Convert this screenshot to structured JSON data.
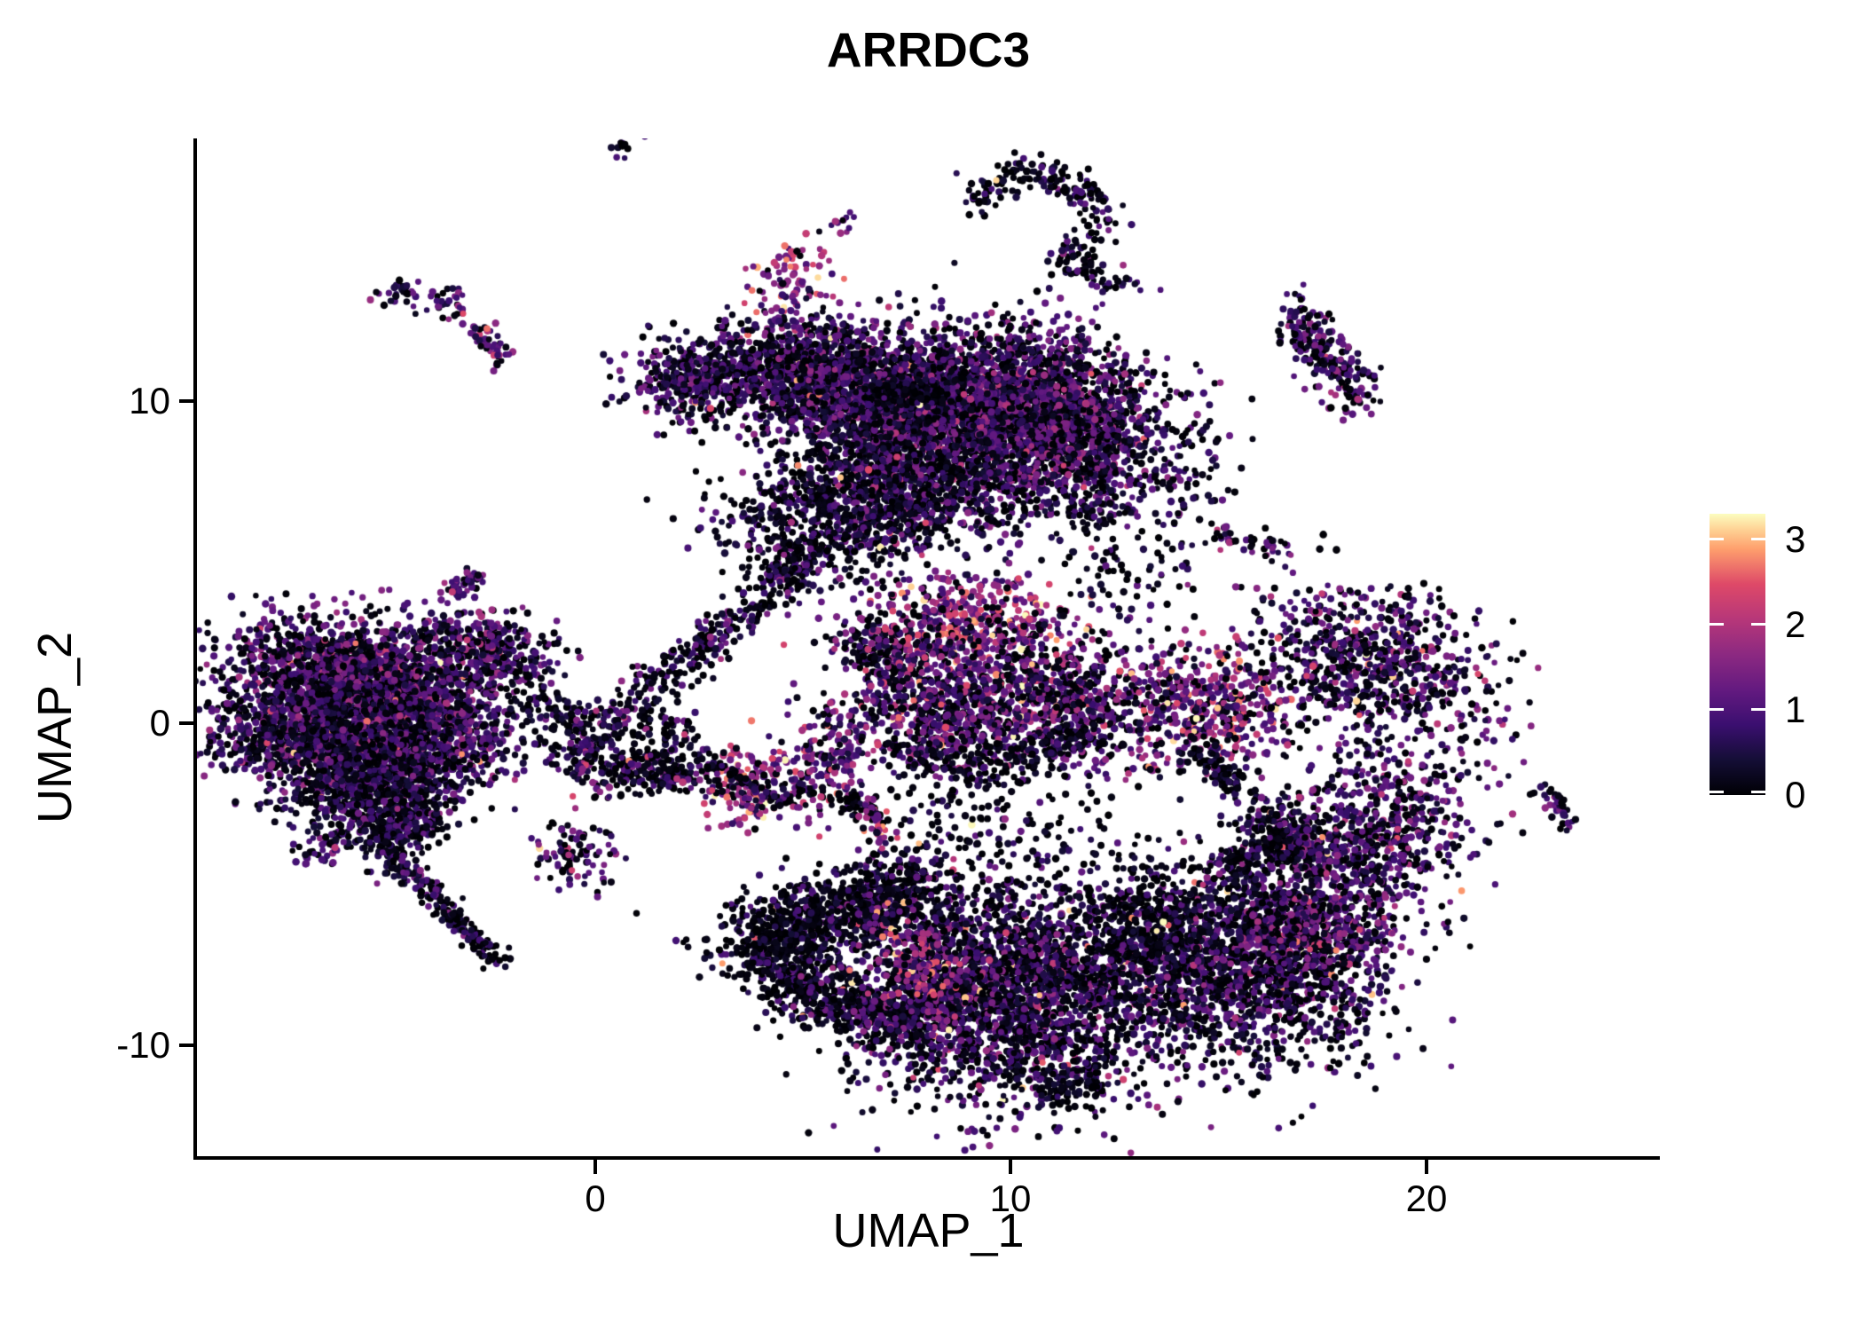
{
  "title": "ARRDC3",
  "axes": {
    "x": {
      "label": "UMAP_1",
      "ticks": [
        "0",
        "10",
        "20"
      ]
    },
    "y": {
      "label": "UMAP_2",
      "ticks": [
        "10",
        "0",
        "-10"
      ]
    }
  },
  "legend": {
    "ticks": [
      "3",
      "2",
      "1",
      "0"
    ]
  },
  "chart_data": {
    "type": "scatter",
    "title": "ARRDC3",
    "xlabel": "UMAP_1",
    "ylabel": "UMAP_2",
    "xlim": [
      -9.6,
      25.6
    ],
    "ylim": [
      -13.4,
      18.2
    ],
    "xticks": [
      0,
      10,
      20
    ],
    "yticks": [
      -10,
      0,
      10
    ],
    "grid": false,
    "legend_position": "right",
    "color_scale": {
      "name": "magma",
      "vmin": 0,
      "vmax": 3.3,
      "tick_values": [
        0,
        1,
        2,
        3
      ],
      "stops": [
        [
          0,
          "#000004"
        ],
        [
          0.125,
          "#140e36"
        ],
        [
          0.25,
          "#3b0f70"
        ],
        [
          0.375,
          "#641a80"
        ],
        [
          0.5,
          "#8c2981"
        ],
        [
          0.625,
          "#b73779"
        ],
        [
          0.75,
          "#de4968"
        ],
        [
          0.875,
          "#fe9f6d"
        ],
        [
          0.94,
          "#fecf92"
        ],
        [
          1,
          "#fcfdbf"
        ]
      ]
    },
    "point_radius_px": [
      3.2,
      4.3
    ],
    "clusters": [
      {
        "k": "blob",
        "x": -5.7,
        "y": 1.5,
        "sx": 1.55,
        "sy": 0.85,
        "a": -10,
        "n": 1500,
        "v": 0.95,
        "s": 0.55,
        "b": 0.3,
        "h": 0.004
      },
      {
        "k": "blob",
        "x": -7.0,
        "y": -0.2,
        "sx": 1.15,
        "sy": 0.85,
        "a": 0,
        "n": 1000,
        "v": 0.8,
        "s": 0.5,
        "b": 0.34,
        "h": 0.003
      },
      {
        "k": "blob",
        "x": -4.3,
        "y": -0.3,
        "sx": 1.2,
        "sy": 0.9,
        "a": 0,
        "n": 1000,
        "v": 0.9,
        "s": 0.5,
        "b": 0.3,
        "h": 0.004
      },
      {
        "k": "blob",
        "x": -5.3,
        "y": -1.9,
        "sx": 1.05,
        "sy": 0.75,
        "a": 20,
        "n": 750,
        "v": 0.65,
        "s": 0.45,
        "b": 0.42,
        "h": 0.002
      },
      {
        "k": "blob",
        "x": -2.7,
        "y": 2.2,
        "sx": 0.85,
        "sy": 0.6,
        "a": -20,
        "n": 380,
        "v": 0.9,
        "s": 0.5,
        "b": 0.3,
        "h": 0.003
      },
      {
        "k": "blob",
        "x": -4.7,
        "y": -3.3,
        "sx": 0.6,
        "sy": 0.5,
        "a": 30,
        "n": 260,
        "v": 0.6,
        "s": 0.4,
        "b": 0.45,
        "h": 0
      },
      {
        "k": "line",
        "pts": [
          [
            -5.0,
            -4.2
          ],
          [
            -3.9,
            -5.2
          ],
          [
            -3.3,
            -6.2
          ],
          [
            -2.4,
            -7.4
          ]
        ],
        "w": 0.18,
        "n": 200,
        "v": 0.7,
        "s": 0.4,
        "b": 0.45,
        "h": 0
      },
      {
        "k": "line",
        "pts": [
          [
            -1.8,
            0.6
          ],
          [
            -0.6,
            -0.2
          ],
          [
            0.4,
            -1.0
          ],
          [
            1.2,
            -1.8
          ]
        ],
        "w": 0.45,
        "n": 170,
        "v": 0.45,
        "s": 0.35,
        "b": 0.55,
        "h": 0.006
      },
      {
        "k": "blob",
        "x": -6.55,
        "y": -3.9,
        "sx": 0.28,
        "sy": 0.28,
        "a": 0,
        "n": 35,
        "v": 0.7,
        "s": 0.4,
        "b": 0.4,
        "h": 0
      },
      {
        "k": "line",
        "pts": [
          [
            -3.5,
            4.0
          ],
          [
            -2.8,
            4.7
          ]
        ],
        "w": 0.14,
        "n": 45,
        "v": 0.95,
        "s": 0.5,
        "b": 0.3,
        "h": 0
      },
      {
        "k": "blob",
        "x": -4.7,
        "y": 13.35,
        "sx": 0.3,
        "sy": 0.22,
        "a": 20,
        "n": 26,
        "v": 0.9,
        "s": 0.5,
        "b": 0.3,
        "h": 0
      },
      {
        "k": "blob",
        "x": -3.6,
        "y": 13.1,
        "sx": 0.33,
        "sy": 0.26,
        "a": 0,
        "n": 30,
        "v": 1.0,
        "s": 0.5,
        "b": 0.28,
        "h": 0
      },
      {
        "k": "line",
        "pts": [
          [
            -2.95,
            12.4
          ],
          [
            -2.2,
            11.2
          ]
        ],
        "w": 0.16,
        "n": 50,
        "v": 1.1,
        "s": 0.55,
        "b": 0.25,
        "h": 0.02
      },
      {
        "k": "blob",
        "x": 0.75,
        "y": 17.85,
        "sx": 0.18,
        "sy": 0.3,
        "a": 0,
        "n": 14,
        "v": 0.9,
        "s": 0.5,
        "b": 0.3,
        "h": 0
      },
      {
        "k": "line",
        "pts": [
          [
            9.1,
            16.2
          ],
          [
            9.9,
            17.0
          ],
          [
            10.9,
            17.0
          ],
          [
            11.9,
            16.3
          ],
          [
            12.3,
            15.4
          ]
        ],
        "w": 0.3,
        "n": 170,
        "v": 0.55,
        "s": 0.45,
        "b": 0.5,
        "h": 0.006
      },
      {
        "k": "line",
        "pts": [
          [
            11.9,
            14.9
          ],
          [
            11.1,
            14.5
          ],
          [
            12.2,
            13.9
          ],
          [
            12.9,
            13.4
          ]
        ],
        "w": 0.25,
        "n": 90,
        "v": 0.6,
        "s": 0.5,
        "b": 0.5,
        "h": 0
      },
      {
        "k": "blob",
        "x": 4.6,
        "y": 13.7,
        "sx": 0.5,
        "sy": 0.6,
        "a": 0,
        "n": 80,
        "v": 1.8,
        "s": 0.55,
        "b": 0.12,
        "h": 0.06
      },
      {
        "k": "blob",
        "x": 5.95,
        "y": 15.6,
        "sx": 0.2,
        "sy": 0.28,
        "a": 0,
        "n": 12,
        "v": 1.0,
        "s": 0.6,
        "b": 0.2,
        "h": 0
      },
      {
        "k": "blob",
        "x": 10.6,
        "y": 9.4,
        "sx": 1.45,
        "sy": 1.3,
        "a": -15,
        "n": 2600,
        "v": 0.9,
        "s": 0.55,
        "b": 0.3,
        "h": 0.004
      },
      {
        "k": "blob",
        "x": 7.7,
        "y": 9.9,
        "sx": 1.2,
        "sy": 1.1,
        "a": 0,
        "n": 1700,
        "v": 0.85,
        "s": 0.55,
        "b": 0.32,
        "h": 0.004
      },
      {
        "k": "blob",
        "x": 5.0,
        "y": 10.9,
        "sx": 1.0,
        "sy": 0.9,
        "a": 0,
        "n": 950,
        "v": 0.8,
        "s": 0.5,
        "b": 0.33,
        "h": 0.003
      },
      {
        "k": "blob",
        "x": 2.4,
        "y": 10.7,
        "sx": 0.8,
        "sy": 0.65,
        "a": 0,
        "n": 420,
        "v": 0.75,
        "s": 0.5,
        "b": 0.35,
        "h": 0.002
      },
      {
        "k": "line",
        "pts": [
          [
            6.7,
            10.35
          ],
          [
            8.3,
            10.15
          ]
        ],
        "w": 0.22,
        "n": 150,
        "v": 0.3,
        "s": 0.3,
        "b": 0.62,
        "h": 0
      },
      {
        "k": "blob",
        "x": 7.3,
        "y": 7.3,
        "sx": 1.35,
        "sy": 0.95,
        "a": -10,
        "n": 950,
        "v": 0.7,
        "s": 0.5,
        "b": 0.38,
        "h": 0.004
      },
      {
        "k": "blob",
        "x": 5.4,
        "y": 6.2,
        "sx": 1.25,
        "sy": 1.05,
        "a": 0,
        "n": 480,
        "v": 0.6,
        "s": 0.45,
        "b": 0.45,
        "h": 0.003
      },
      {
        "k": "line",
        "pts": [
          [
            5.3,
            5.4
          ],
          [
            4.3,
            4.3
          ],
          [
            3.3,
            3.1
          ],
          [
            2.2,
            1.9
          ],
          [
            0.9,
            0.8
          ]
        ],
        "w": 0.3,
        "n": 300,
        "v": 0.75,
        "s": 0.5,
        "b": 0.42,
        "h": 0.004
      },
      {
        "k": "blob",
        "x": 13.6,
        "y": 7.8,
        "sx": 1.0,
        "sy": 1.1,
        "a": 0,
        "n": 110,
        "v": 0.5,
        "s": 0.4,
        "b": 0.55,
        "h": 0
      },
      {
        "k": "blob",
        "x": 12.1,
        "y": 6.6,
        "sx": 0.35,
        "sy": 0.3,
        "a": 0,
        "n": 45,
        "v": 0.6,
        "s": 0.45,
        "b": 0.45,
        "h": 0
      },
      {
        "k": "ring",
        "x": 0.75,
        "y": -0.65,
        "rx": 1.35,
        "ry": 1.05,
        "t": 0.32,
        "n": 300,
        "v": 0.75,
        "s": 0.5,
        "b": 0.38,
        "h": 0.008
      },
      {
        "k": "line",
        "pts": [
          [
            1.3,
            -1.5
          ],
          [
            2.4,
            -1.8
          ]
        ],
        "w": 0.22,
        "n": 70,
        "v": 0.5,
        "s": 0.4,
        "b": 0.5,
        "h": 0
      },
      {
        "k": "blob",
        "x": -0.5,
        "y": -3.9,
        "sx": 0.55,
        "sy": 0.6,
        "a": 30,
        "n": 100,
        "v": 1.0,
        "s": 0.6,
        "b": 0.3,
        "h": 0.01
      },
      {
        "k": "blob",
        "x": 3.7,
        "y": -2.0,
        "sx": 0.75,
        "sy": 0.65,
        "a": 0,
        "n": 190,
        "v": 1.6,
        "s": 0.65,
        "b": 0.15,
        "h": 0.05
      },
      {
        "k": "line",
        "pts": [
          [
            2.7,
            -1.2
          ],
          [
            3.2,
            -1.6
          ],
          [
            4.4,
            -2.4
          ],
          [
            5.1,
            -2.0
          ]
        ],
        "w": 0.2,
        "n": 80,
        "v": 0.5,
        "s": 0.4,
        "b": 0.55,
        "h": 0
      },
      {
        "k": "blob",
        "x": 5.5,
        "y": -1.3,
        "sx": 0.55,
        "sy": 0.8,
        "a": -20,
        "n": 150,
        "v": 1.2,
        "s": 0.6,
        "b": 0.25,
        "h": 0.01
      },
      {
        "k": "line",
        "pts": [
          [
            5.9,
            -2.3
          ],
          [
            6.6,
            -2.7
          ]
        ],
        "w": 0.18,
        "n": 40,
        "v": 0.5,
        "s": 0.4,
        "b": 0.5,
        "h": 0
      },
      {
        "k": "line",
        "pts": [
          [
            6.6,
            -2.4
          ],
          [
            6.9,
            -3.3
          ],
          [
            6.8,
            -4.2
          ]
        ],
        "w": 0.15,
        "n": 50,
        "v": 1.4,
        "s": 0.7,
        "b": 0.2,
        "h": 0.08
      },
      {
        "k": "blob",
        "x": 6.9,
        "y": 2.3,
        "sx": 0.65,
        "sy": 0.55,
        "a": 0,
        "n": 160,
        "v": 0.7,
        "s": 0.5,
        "b": 0.4,
        "h": 0
      },
      {
        "k": "blob",
        "x": 9.1,
        "y": 3.1,
        "sx": 1.25,
        "sy": 0.8,
        "a": -8,
        "n": 480,
        "v": 1.55,
        "s": 0.6,
        "b": 0.12,
        "h": 0.05
      },
      {
        "k": "blob",
        "x": 8.4,
        "y": 0.4,
        "sx": 1.35,
        "sy": 1.1,
        "a": -12,
        "n": 800,
        "v": 1.05,
        "s": 0.6,
        "b": 0.28,
        "h": 0.012
      },
      {
        "k": "blob",
        "x": 11.2,
        "y": 0.7,
        "sx": 1.3,
        "sy": 1.0,
        "a": -12,
        "n": 700,
        "v": 1.0,
        "s": 0.6,
        "b": 0.3,
        "h": 0.01
      },
      {
        "k": "line",
        "pts": [
          [
            7.2,
            -0.9
          ],
          [
            9.0,
            -1.3
          ],
          [
            10.8,
            -0.9
          ],
          [
            12.2,
            -0.3
          ]
        ],
        "w": 0.3,
        "n": 170,
        "v": 0.4,
        "s": 0.35,
        "b": 0.55,
        "h": 0
      },
      {
        "k": "blob",
        "x": 12.6,
        "y": 4.9,
        "sx": 0.9,
        "sy": 0.9,
        "a": 0,
        "n": 70,
        "v": 0.5,
        "s": 0.4,
        "b": 0.5,
        "h": 0
      },
      {
        "k": "line",
        "pts": [
          [
            16.8,
            12.8
          ],
          [
            17.3,
            11.9
          ],
          [
            17.9,
            10.9
          ],
          [
            18.4,
            10.1
          ]
        ],
        "w": 0.35,
        "n": 230,
        "v": 0.85,
        "s": 0.55,
        "b": 0.35,
        "h": 0.008
      },
      {
        "k": "blob",
        "x": 15.25,
        "y": 5.7,
        "sx": 0.3,
        "sy": 0.2,
        "a": -20,
        "n": 20,
        "v": 1.1,
        "s": 0.6,
        "b": 0.3,
        "h": 0
      },
      {
        "k": "blob",
        "x": 16.2,
        "y": 5.45,
        "sx": 0.32,
        "sy": 0.24,
        "a": -20,
        "n": 26,
        "v": 0.9,
        "s": 0.6,
        "b": 0.35,
        "h": 0.02
      },
      {
        "k": "blob",
        "x": 18.7,
        "y": 1.9,
        "sx": 1.5,
        "sy": 1.1,
        "a": -25,
        "n": 750,
        "v": 0.85,
        "s": 0.55,
        "b": 0.33,
        "h": 0.006
      },
      {
        "k": "blob",
        "x": 14.9,
        "y": 0.5,
        "sx": 1.05,
        "sy": 0.95,
        "a": 0,
        "n": 480,
        "v": 1.25,
        "s": 0.65,
        "b": 0.22,
        "h": 0.035
      },
      {
        "k": "line",
        "pts": [
          [
            14.6,
            -0.8
          ],
          [
            15.1,
            -1.6
          ],
          [
            15.6,
            -2.3
          ]
        ],
        "w": 0.25,
        "n": 90,
        "v": 0.35,
        "s": 0.3,
        "b": 0.6,
        "h": 0
      },
      {
        "k": "line",
        "pts": [
          [
            16.0,
            -2.6
          ],
          [
            16.6,
            -3.4
          ],
          [
            17.2,
            -4.2
          ]
        ],
        "w": 0.4,
        "n": 200,
        "v": 0.6,
        "s": 0.5,
        "b": 0.5,
        "h": 0.008
      },
      {
        "k": "blob",
        "x": 18.8,
        "y": -3.5,
        "sx": 1.1,
        "sy": 1.6,
        "a": -20,
        "n": 750,
        "v": 0.95,
        "s": 0.55,
        "b": 0.3,
        "h": 0.008
      },
      {
        "k": "line",
        "pts": [
          [
            22.7,
            -2.1
          ],
          [
            23.3,
            -2.7
          ],
          [
            23.6,
            -3.2
          ]
        ],
        "w": 0.15,
        "n": 40,
        "v": 0.8,
        "s": 0.5,
        "b": 0.4,
        "h": 0.025
      },
      {
        "k": "blob",
        "x": 4.4,
        "y": -6.6,
        "sx": 0.85,
        "sy": 0.6,
        "a": 25,
        "n": 350,
        "v": 0.45,
        "s": 0.4,
        "b": 0.55,
        "h": 0.004
      },
      {
        "k": "blob",
        "x": 5.8,
        "y": -5.9,
        "sx": 0.85,
        "sy": 0.6,
        "a": 15,
        "n": 350,
        "v": 0.5,
        "s": 0.45,
        "b": 0.52,
        "h": 0.004
      },
      {
        "k": "blob",
        "x": 7.0,
        "y": -5.3,
        "sx": 0.7,
        "sy": 0.55,
        "a": 10,
        "n": 250,
        "v": 0.55,
        "s": 0.45,
        "b": 0.5,
        "h": 0.004
      },
      {
        "k": "line",
        "pts": [
          [
            4.3,
            -7.6
          ],
          [
            5.3,
            -8.4
          ],
          [
            6.5,
            -9.0
          ],
          [
            7.6,
            -9.4
          ]
        ],
        "w": 0.5,
        "n": 550,
        "v": 0.45,
        "s": 0.4,
        "b": 0.55,
        "h": 0.004
      },
      {
        "k": "blob",
        "x": 9.9,
        "y": -8.3,
        "sx": 2.0,
        "sy": 1.6,
        "a": -8,
        "n": 2800,
        "v": 0.8,
        "s": 0.55,
        "b": 0.35,
        "h": 0.006
      },
      {
        "k": "blob",
        "x": 7.9,
        "y": -7.7,
        "sx": 0.55,
        "sy": 1.1,
        "a": 10,
        "n": 200,
        "v": 1.5,
        "s": 0.7,
        "b": 0.15,
        "h": 0.06
      },
      {
        "k": "blob",
        "x": 13.3,
        "y": -6.3,
        "sx": 0.9,
        "sy": 1.0,
        "a": 0,
        "n": 330,
        "v": 0.35,
        "s": 0.3,
        "b": 0.62,
        "h": 0.002
      },
      {
        "k": "blob",
        "x": 15.6,
        "y": -7.4,
        "sx": 1.7,
        "sy": 1.6,
        "a": 0,
        "n": 1700,
        "v": 0.75,
        "s": 0.5,
        "b": 0.38,
        "h": 0.005
      },
      {
        "k": "blob",
        "x": 17.2,
        "y": -6.3,
        "sx": 0.9,
        "sy": 1.1,
        "a": -20,
        "n": 500,
        "v": 0.95,
        "s": 0.55,
        "b": 0.3,
        "h": 0.004
      },
      {
        "k": "blob",
        "x": 11.4,
        "y": -11.3,
        "sx": 0.5,
        "sy": 0.45,
        "a": 0,
        "n": 90,
        "v": 0.4,
        "s": 0.35,
        "b": 0.6,
        "h": 0
      },
      {
        "k": "line",
        "pts": [
          [
            15.0,
            -4.6
          ],
          [
            16.0,
            -4.0
          ],
          [
            16.8,
            -3.6
          ]
        ],
        "w": 0.35,
        "n": 150,
        "v": 0.55,
        "s": 0.45,
        "b": 0.5,
        "h": 0.006
      },
      {
        "k": "blob",
        "x": 9.5,
        "y": -3.2,
        "sx": 1.5,
        "sy": 1.0,
        "a": 0,
        "n": 160,
        "v": 0.5,
        "s": 0.4,
        "b": 0.55,
        "h": 0.003
      }
    ]
  }
}
